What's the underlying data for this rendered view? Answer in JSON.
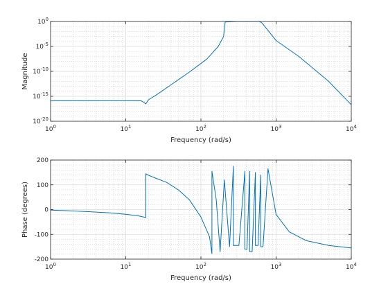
{
  "chart_data": [
    {
      "type": "line",
      "xlabel": "Frequency (rad/s)",
      "ylabel": "Magnitude",
      "xscale": "log",
      "yscale": "log",
      "xlim": [
        1,
        10000
      ],
      "ylim": [
        1e-20,
        1
      ],
      "xticks": [
        {
          "base": "10",
          "exp": "0"
        },
        {
          "base": "10",
          "exp": "1"
        },
        {
          "base": "10",
          "exp": "2"
        },
        {
          "base": "10",
          "exp": "3"
        },
        {
          "base": "10",
          "exp": "4"
        }
      ],
      "yticks": [
        {
          "base": "10",
          "exp": "0"
        },
        {
          "base": "10",
          "exp": "-5"
        },
        {
          "base": "10",
          "exp": "-10"
        },
        {
          "base": "10",
          "exp": "-15"
        },
        {
          "base": "10",
          "exp": "-20"
        }
      ],
      "grid": true,
      "minor_grid": true,
      "line_color": "#0072bd",
      "series": [
        {
          "x": [
            1,
            5,
            10,
            16,
            17.5,
            18.5,
            20,
            25,
            40,
            70,
            120,
            170,
            200,
            210,
            300,
            500,
            600,
            650,
            1000,
            2000,
            5000,
            10000
          ],
          "y": [
            1.3e-16,
            1.3e-16,
            1.3e-16,
            1.25e-16,
            6e-17,
            3e-17,
            2e-16,
            1.5e-15,
            2e-13,
            7e-11,
            3e-08,
            1e-05,
            0.001,
            0.8,
            1,
            1,
            1,
            0.5,
            0.00015,
            1e-07,
            1e-12,
            2e-17
          ]
        }
      ]
    },
    {
      "type": "line",
      "xlabel": "Frequency (rad/s)",
      "ylabel": "Phase (degrees)",
      "xscale": "log",
      "xlim": [
        1,
        10000
      ],
      "ylim": [
        -200,
        200
      ],
      "xticks": [
        {
          "base": "10",
          "exp": "0"
        },
        {
          "base": "10",
          "exp": "1"
        },
        {
          "base": "10",
          "exp": "2"
        },
        {
          "base": "10",
          "exp": "3"
        },
        {
          "base": "10",
          "exp": "4"
        }
      ],
      "yticks": [
        "200",
        "100",
        "0",
        "-100",
        "-200"
      ],
      "grid": true,
      "minor_grid": true,
      "line_color": "#0072bd",
      "series": [
        {
          "x": [
            1,
            1.5,
            3,
            6,
            10,
            15,
            18.5,
            18.5,
            19.5,
            25,
            35,
            50,
            70,
            100,
            130,
            140,
            140,
            160,
            180,
            180,
            205,
            240,
            240,
            270,
            270,
            320,
            385,
            385,
            410,
            445,
            445,
            480,
            530,
            530,
            575,
            625,
            625,
            670,
            780,
            780,
            1000,
            1500,
            2500,
            5000,
            10000
          ],
          "y": [
            -2,
            -4,
            -8,
            -13,
            -19,
            -26,
            -32,
            145,
            140,
            127,
            110,
            80,
            40,
            -30,
            -110,
            -178,
            155,
            40,
            -170,
            -170,
            120,
            -150,
            -150,
            175,
            -145,
            -145,
            155,
            -160,
            -160,
            155,
            -170,
            -170,
            150,
            -145,
            -145,
            140,
            -150,
            -150,
            165,
            165,
            -20,
            -90,
            -125,
            -145,
            -155
          ]
        }
      ]
    }
  ]
}
